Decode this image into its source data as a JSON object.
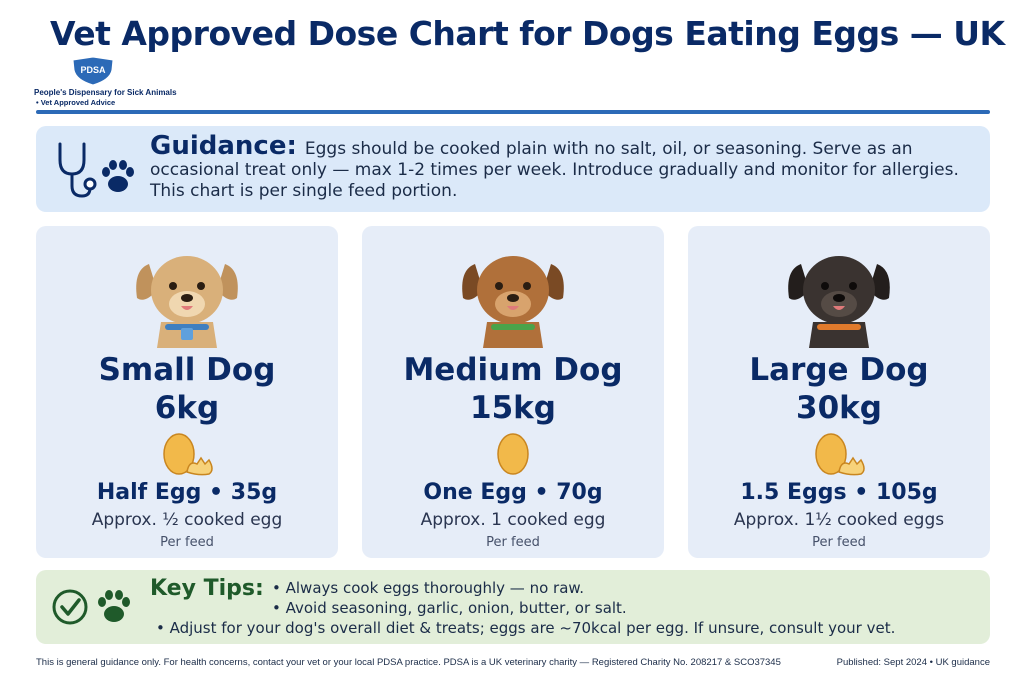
{
  "title": "Vet Approved Dose Chart for Dogs Eating Eggs — UK",
  "logo": {
    "badge": "PDSA",
    "line1": "People's Dispensary for Sick Animals",
    "line2": "• Vet Approved Advice",
    "color": "#2c6ab7"
  },
  "guidance": {
    "label": "Guidance:",
    "text": "Eggs should be cooked plain with no salt, oil, or seasoning. Serve as an occasional treat only — max 1-2 times per week. Introduce gradually and monitor for allergies. This chart is per single feed portion.",
    "icons": [
      "stethoscope-icon",
      "paw-icon"
    ]
  },
  "cards": [
    {
      "name": "Small Dog",
      "weight": "6kg",
      "dose": "Half Egg • 35g",
      "approx": "Approx. ½ cooked egg",
      "per_feed": "Per feed",
      "egg_icon": "half-egg-icon",
      "dog_color": "#d9b07a",
      "collar_color": "#3f7fc0"
    },
    {
      "name": "Medium Dog",
      "weight": "15kg",
      "dose": "One Egg • 70g",
      "approx": "Approx. 1 cooked egg",
      "per_feed": "Per feed",
      "egg_icon": "whole-egg-icon",
      "dog_color": "#b0703a",
      "collar_color": "#4aa34a"
    },
    {
      "name": "Large Dog",
      "weight": "30kg",
      "dose": "1.5 Eggs • 105g",
      "approx": "Approx. 1½ cooked eggs",
      "per_feed": "Per feed",
      "egg_icon": "egg-and-half-icon",
      "dog_color": "#3a3330",
      "collar_color": "#e07a2c"
    }
  ],
  "tips": {
    "label": "Key Tips:",
    "items": [
      "• Always cook eggs thoroughly — no raw.",
      "• Avoid seasoning, garlic, onion, butter, or salt.",
      "• Adjust for your dog's overall diet & treats; eggs are ~70kcal per egg. If unsure, consult your vet."
    ],
    "icons": [
      "check-circle-icon",
      "paw-icon"
    ]
  },
  "footer": {
    "left": "This is general guidance only. For health concerns, contact your vet or your local PDSA practice. PDSA is a UK veterinary charity — Registered Charity No. 208217 & SCO37345",
    "right": "Published: Sept 2024 • UK guidance"
  }
}
